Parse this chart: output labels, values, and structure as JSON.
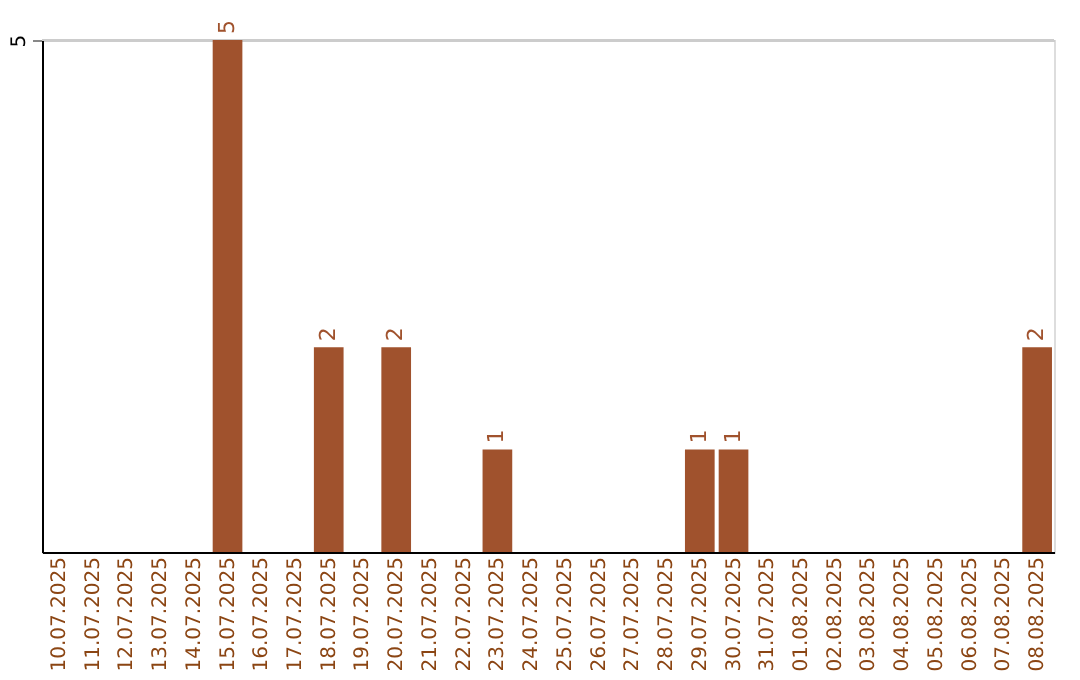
{
  "chart_data": {
    "type": "bar",
    "categories": [
      "10.07.2025",
      "11.07.2025",
      "12.07.2025",
      "13.07.2025",
      "14.07.2025",
      "15.07.2025",
      "16.07.2025",
      "17.07.2025",
      "18.07.2025",
      "19.07.2025",
      "20.07.2025",
      "21.07.2025",
      "22.07.2025",
      "23.07.2025",
      "24.07.2025",
      "25.07.2025",
      "26.07.2025",
      "27.07.2025",
      "28.07.2025",
      "29.07.2025",
      "30.07.2025",
      "31.07.2025",
      "01.08.2025",
      "02.08.2025",
      "03.08.2025",
      "04.08.2025",
      "05.08.2025",
      "06.08.2025",
      "07.08.2025",
      "08.08.2025"
    ],
    "values": [
      0,
      0,
      0,
      0,
      0,
      5,
      0,
      0,
      2,
      0,
      2,
      0,
      0,
      1,
      0,
      0,
      0,
      0,
      0,
      1,
      1,
      0,
      0,
      0,
      0,
      0,
      0,
      0,
      0,
      2
    ],
    "value_labels": [
      null,
      null,
      null,
      null,
      null,
      "5",
      null,
      null,
      "2",
      null,
      "2",
      null,
      null,
      "1",
      null,
      null,
      null,
      null,
      null,
      "1",
      "1",
      null,
      null,
      null,
      null,
      null,
      null,
      null,
      null,
      "2"
    ],
    "color": "#a0522d",
    "ylim": [
      0,
      5
    ],
    "yticks": [
      5
    ],
    "grid": "y"
  }
}
